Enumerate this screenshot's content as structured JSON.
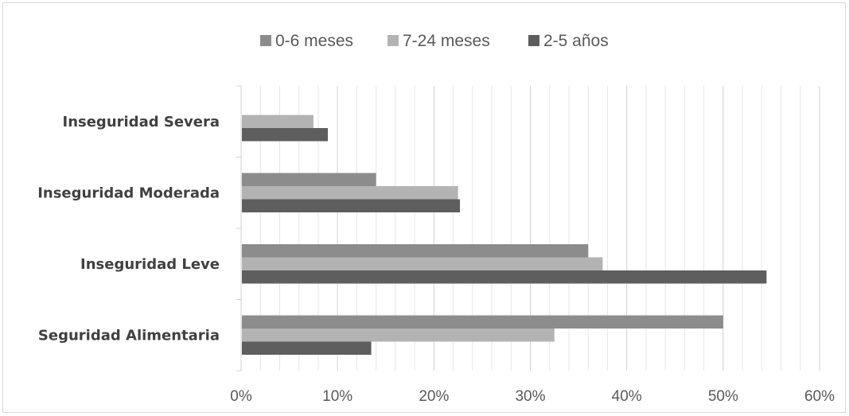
{
  "chart_data": {
    "type": "bar",
    "orientation": "horizontal",
    "categories": [
      "Seguridad Alimentaria",
      "Inseguridad Leve",
      "Inseguridad Moderada",
      "Inseguridad Severa"
    ],
    "series": [
      {
        "name": "0-6 meses",
        "color": "#8c8c8c",
        "values": [
          50,
          36,
          14,
          0
        ]
      },
      {
        "name": "7-24 meses",
        "color": "#b3b3b3",
        "values": [
          32.5,
          37.5,
          22.5,
          7.5
        ]
      },
      {
        "name": "2-5 años",
        "color": "#5e5e5e",
        "values": [
          13.5,
          54.5,
          22.7,
          9
        ]
      }
    ],
    "xlim": [
      0,
      60
    ],
    "xticks": [
      "0%",
      "10%",
      "20%",
      "30%",
      "40%",
      "50%",
      "60%"
    ],
    "legend": "top",
    "grid": "vertical"
  }
}
